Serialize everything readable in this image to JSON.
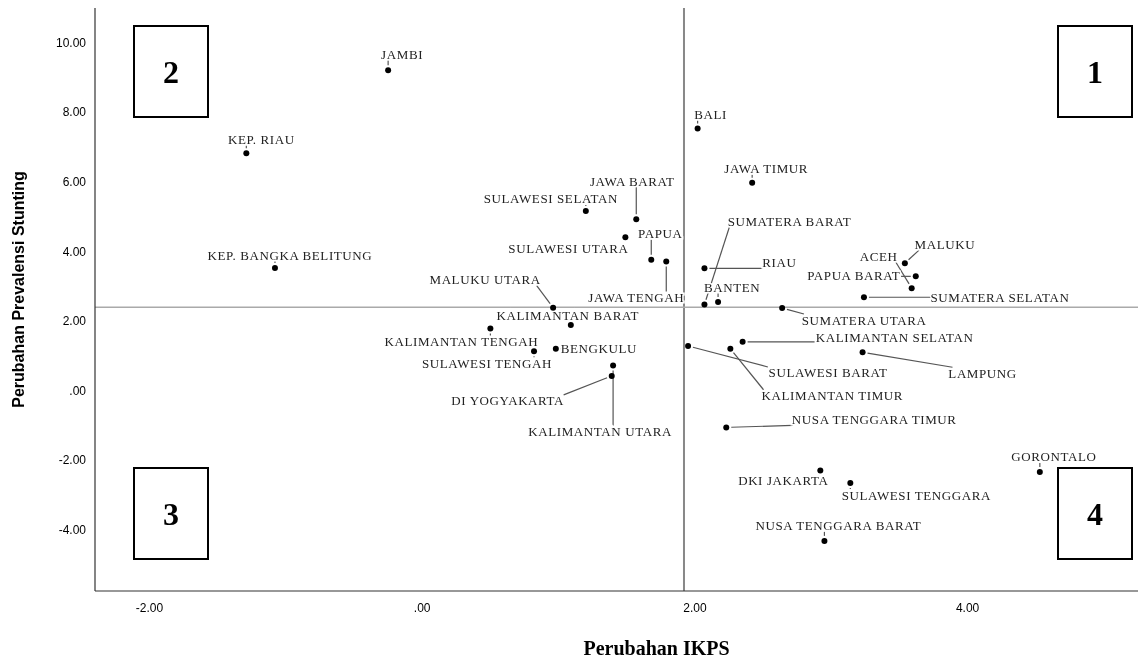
{
  "chart_data": {
    "type": "scatter",
    "xlabel": "Perubahan IKPS",
    "ylabel": "Perubahan Prevalensi Stunting",
    "xlim": [
      -2.4,
      5.25
    ],
    "ylim": [
      -5.75,
      11
    ],
    "xticks": [
      {
        "value": -2,
        "label": "-2.00"
      },
      {
        "value": 0,
        "label": ".00"
      },
      {
        "value": 2,
        "label": "2.00"
      },
      {
        "value": 4,
        "label": "4.00"
      }
    ],
    "yticks": [
      {
        "value": -4,
        "label": "-4.00"
      },
      {
        "value": -2,
        "label": "-2.00"
      },
      {
        "value": 0,
        "label": ".00"
      },
      {
        "value": 2,
        "label": "2.00"
      },
      {
        "value": 4,
        "label": "4.00"
      },
      {
        "value": 6,
        "label": "6.00"
      },
      {
        "value": 8,
        "label": "8.00"
      },
      {
        "value": 10,
        "label": "10.00"
      }
    ],
    "grid": false,
    "marker": "circle",
    "ref_lines": [
      {
        "axis": "x",
        "value": 1.92,
        "color": "#888888"
      },
      {
        "axis": "y",
        "value": 2.4,
        "color": "#aaaaaa"
      }
    ],
    "series": [
      {
        "color": "#000000",
        "x": [
          -0.25,
          -1.29,
          -1.08,
          1.2,
          1.57,
          1.49,
          1.68,
          1.79,
          0.96,
          1.09,
          0.5,
          0.82,
          0.98,
          1.39,
          1.4,
          2.02,
          2.42,
          2.07,
          2.07,
          2.17,
          3.59,
          3.54,
          3.62,
          3.24,
          2.64,
          2.35,
          1.95,
          2.26,
          3.23,
          2.23,
          4.53,
          2.92,
          3.14,
          2.95
        ],
        "values": [
          9.21,
          6.83,
          3.53,
          5.17,
          4.93,
          4.41,
          3.77,
          3.72,
          2.39,
          1.89,
          1.79,
          1.14,
          1.21,
          0.43,
          0.73,
          7.54,
          5.98,
          2.48,
          3.52,
          2.55,
          2.95,
          3.67,
          3.29,
          2.69,
          2.38,
          1.41,
          1.29,
          1.21,
          1.11,
          -1.05,
          -2.33,
          -2.29,
          -2.65,
          -4.31
        ]
      }
    ],
    "annotations": [
      "1",
      "2",
      "3",
      "4",
      {
        "text": "JAMBI",
        "x": -0.25,
        "y": 9.21
      },
      {
        "text": "KEP. RIAU",
        "x": -1.29,
        "y": 6.83
      },
      {
        "text": "KEP. BANGKA BELITUNG",
        "x": -1.08,
        "y": 3.53
      },
      {
        "text": "SULAWESI SELATAN",
        "x": 1.2,
        "y": 5.17
      },
      {
        "text": "JAWA BARAT",
        "x": 1.57,
        "y": 4.93
      },
      {
        "text": "SULAWESI UTARA",
        "x": 1.49,
        "y": 4.41
      },
      {
        "text": "PAPUA",
        "x": 1.68,
        "y": 3.77
      },
      {
        "text": "JAWA TENGAH",
        "x": 1.79,
        "y": 3.72
      },
      {
        "text": "MALUKU UTARA",
        "x": 0.96,
        "y": 2.39
      },
      {
        "text": "KALIMANTAN BARAT",
        "x": 1.09,
        "y": 1.89
      },
      {
        "text": "KALIMANTAN TENGAH",
        "x": 0.5,
        "y": 1.79
      },
      {
        "text": "SULAWESI TENGAH",
        "x": 0.82,
        "y": 1.14
      },
      {
        "text": "BENGKULU",
        "x": 0.98,
        "y": 1.21
      },
      {
        "text": "DI YOGYAKARTA",
        "x": 1.39,
        "y": 0.43
      },
      {
        "text": "KALIMANTAN UTARA",
        "x": 1.4,
        "y": 0.73
      },
      {
        "text": "BALI",
        "x": 2.02,
        "y": 7.54
      },
      {
        "text": "JAWA TIMUR",
        "x": 2.42,
        "y": 5.98
      },
      {
        "text": "SUMATERA BARAT",
        "x": 2.07,
        "y": 2.48
      },
      {
        "text": "RIAU",
        "x": 2.07,
        "y": 3.52
      },
      {
        "text": "BANTEN",
        "x": 2.17,
        "y": 2.55
      },
      {
        "text": "ACEH",
        "x": 3.59,
        "y": 2.95
      },
      {
        "text": "MALUKU",
        "x": 3.54,
        "y": 3.67
      },
      {
        "text": "PAPUA BARAT",
        "x": 3.62,
        "y": 3.29
      },
      {
        "text": "SUMATERA SELATAN",
        "x": 3.24,
        "y": 2.69
      },
      {
        "text": "SUMATERA UTARA",
        "x": 2.64,
        "y": 2.38
      },
      {
        "text": "KALIMANTAN SELATAN",
        "x": 2.35,
        "y": 1.41
      },
      {
        "text": "SULAWESI BARAT",
        "x": 1.95,
        "y": 1.29
      },
      {
        "text": "KALIMANTAN TIMUR",
        "x": 2.26,
        "y": 1.21
      },
      {
        "text": "LAMPUNG",
        "x": 3.23,
        "y": 1.11
      },
      {
        "text": "NUSA TENGGARA TIMUR",
        "x": 2.23,
        "y": -1.05
      },
      {
        "text": "GORONTALO",
        "x": 4.53,
        "y": -2.33
      },
      {
        "text": "DKI JAKARTA",
        "x": 2.92,
        "y": -2.29
      },
      {
        "text": "SULAWESI TENGGARA",
        "x": 3.14,
        "y": -2.65
      },
      {
        "text": "NUSA TENGGARA BARAT",
        "x": 2.95,
        "y": -4.31
      }
    ]
  }
}
